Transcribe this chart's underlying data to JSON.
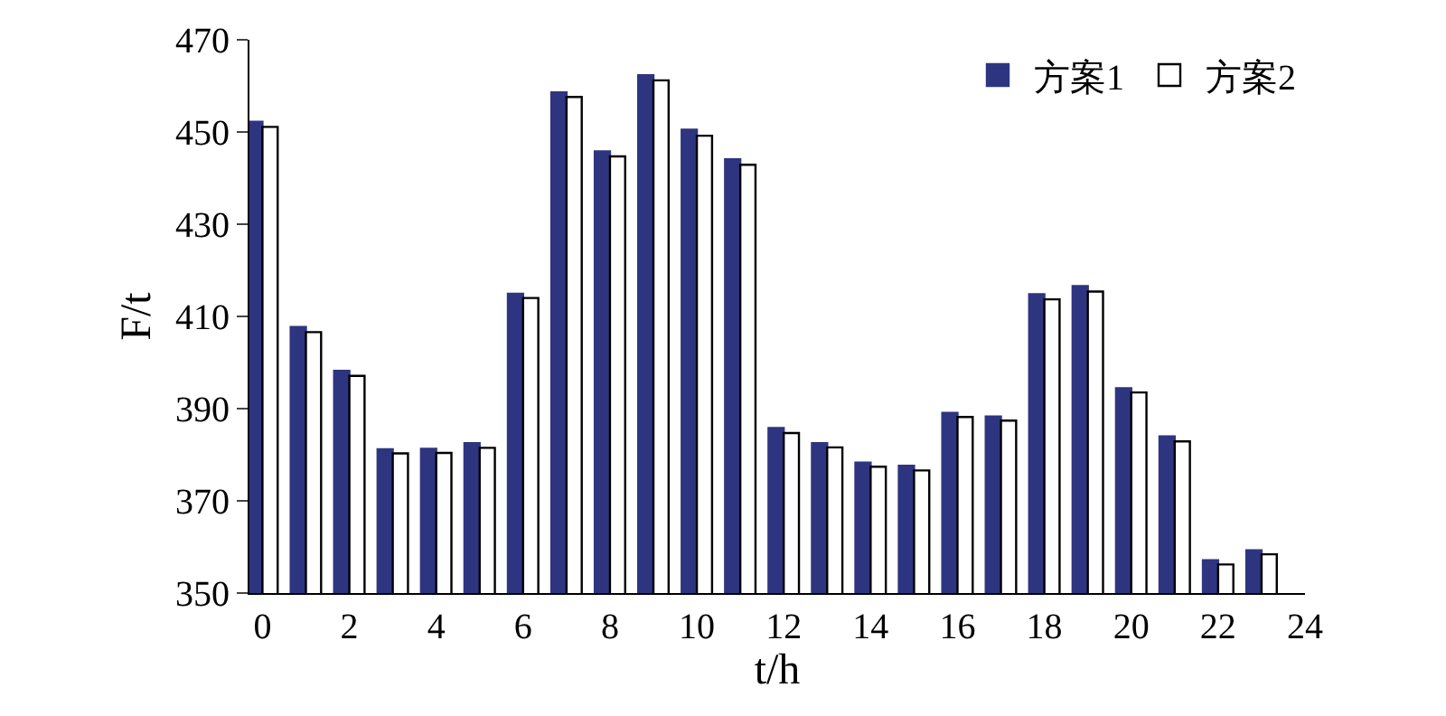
{
  "chart_data": {
    "type": "bar",
    "xlabel": "t/h",
    "ylabel": "F/t",
    "x": [
      0,
      1,
      2,
      3,
      4,
      5,
      6,
      7,
      8,
      9,
      10,
      11,
      12,
      13,
      14,
      15,
      16,
      17,
      18,
      19,
      20,
      21,
      22,
      23
    ],
    "series": [
      {
        "name": "方案1",
        "color": "#2e3580",
        "values": [
          452.2,
          407.7,
          398.2,
          381.2,
          381.3,
          382.5,
          414.9,
          458.6,
          445.8,
          462.3,
          450.5,
          444.1,
          385.8,
          382.5,
          378.3,
          377.6,
          389.1,
          388.3,
          414.8,
          416.6,
          394.4,
          384.0,
          357.1,
          359.3
        ]
      },
      {
        "name": "方案2",
        "color": "#ffffff",
        "values": [
          451.1,
          406.6,
          397.1,
          380.3,
          380.4,
          381.5,
          414.0,
          457.6,
          444.7,
          461.2,
          449.2,
          442.9,
          384.7,
          381.6,
          377.4,
          376.6,
          388.2,
          387.4,
          413.7,
          415.4,
          393.5,
          382.9,
          356.2,
          358.4
        ]
      }
    ],
    "xlim": [
      -0.3,
      24
    ],
    "xticks": [
      0,
      2,
      4,
      6,
      8,
      10,
      12,
      14,
      16,
      18,
      20,
      22,
      24
    ],
    "ylim": [
      350,
      470
    ],
    "yticks": [
      350,
      370,
      390,
      410,
      430,
      450,
      470
    ],
    "legend": "top right"
  }
}
